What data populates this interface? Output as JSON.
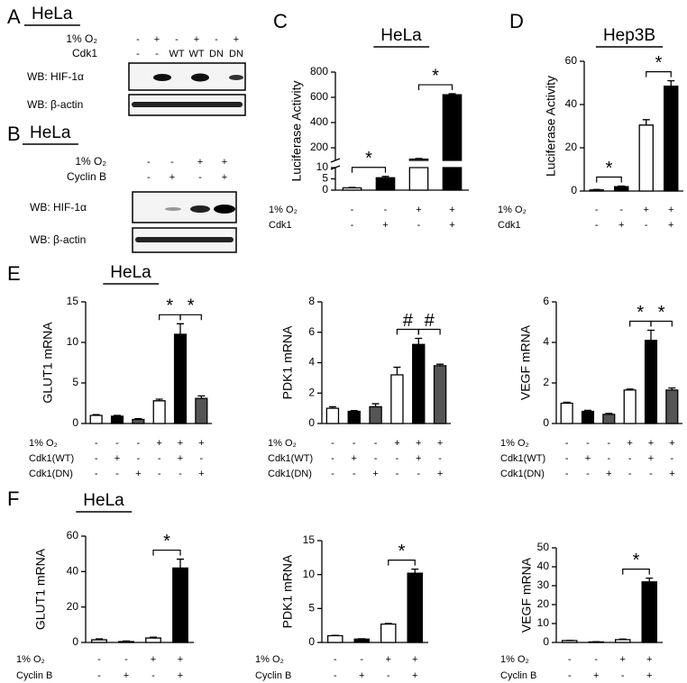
{
  "panel_labels": [
    "A",
    "B",
    "C",
    "D",
    "E",
    "F"
  ],
  "blots": [
    {
      "title": "HeLa",
      "conditions": [
        {
          "name": "1% O₂",
          "marks": [
            "-",
            "+",
            "-",
            "+",
            "-",
            "+"
          ]
        },
        {
          "name": "Cdk1",
          "marks": [
            "-",
            "-",
            "WT",
            "WT",
            "DN",
            "DN"
          ]
        }
      ],
      "rows": [
        "WB: HIF-1α",
        "WB: β-actin"
      ]
    },
    {
      "title": "HeLa",
      "conditions": [
        {
          "name": "1% O₂",
          "marks": [
            "-",
            "-",
            "+",
            "+"
          ]
        },
        {
          "name": "Cyclin B",
          "marks": [
            "-",
            "+",
            "-",
            "+"
          ]
        }
      ],
      "rows": [
        "WB: HIF-1α",
        "WB: β-actin"
      ]
    }
  ],
  "chart_data": [
    {
      "type": "broken_bar",
      "title": "HeLa",
      "y_label": "Luciferase  Activity",
      "ylim_lower": [
        0,
        10
      ],
      "ylim_upper": [
        100,
        800
      ],
      "yticks": [
        0,
        5,
        10,
        200,
        400,
        600,
        800
      ],
      "values": [
        1,
        5.5,
        110,
        620
      ],
      "errors": [
        0.2,
        0.6,
        5,
        8
      ],
      "colors": [
        "#ffffff",
        "#000000",
        "#ffffff",
        "#000000"
      ],
      "conditions": [
        {
          "name": "1% O₂",
          "marks": [
            "-",
            "-",
            "+",
            "+"
          ]
        },
        {
          "name": "Cdk1",
          "marks": [
            "-",
            "+",
            "-",
            "+"
          ]
        }
      ],
      "brackets": [
        {
          "label": "*",
          "from": 0,
          "to": 1
        },
        {
          "label": "*",
          "from": 2,
          "to": 3
        }
      ]
    },
    {
      "type": "bar",
      "title": "Hep3B",
      "y_label": "Luciferase  Activity",
      "ylim": [
        0,
        60
      ],
      "yticks": [
        0,
        20,
        40,
        60
      ],
      "values": [
        0.5,
        2,
        30.5,
        48.5
      ],
      "errors": [
        0.2,
        0.3,
        2.5,
        2.5
      ],
      "colors": [
        "#ffffff",
        "#000000",
        "#ffffff",
        "#000000"
      ],
      "conditions": [
        {
          "name": "1% O₂",
          "marks": [
            "-",
            "-",
            "+",
            "+"
          ]
        },
        {
          "name": "Cdk1",
          "marks": [
            "-",
            "+",
            "-",
            "+"
          ]
        }
      ],
      "brackets": [
        {
          "label": "*",
          "from": 0,
          "to": 1
        },
        {
          "label": "*",
          "from": 2,
          "to": 3
        }
      ]
    },
    {
      "type": "bar",
      "title": "HeLa",
      "y_label": "GLUT1 mRNA",
      "ylim": [
        0,
        15
      ],
      "yticks": [
        0,
        5,
        10,
        15
      ],
      "values": [
        1,
        0.9,
        0.5,
        2.8,
        11,
        3.1
      ],
      "errors": [
        0.1,
        0.1,
        0.1,
        0.2,
        1.3,
        0.3
      ],
      "colors": [
        "#ffffff",
        "#000000",
        "#555555",
        "#ffffff",
        "#000000",
        "#555555"
      ],
      "conditions": [
        {
          "name": "1% O₂",
          "marks": [
            "-",
            "-",
            "-",
            "+",
            "+",
            "+"
          ]
        },
        {
          "name": "Cdk1(WT)",
          "marks": [
            "-",
            "+",
            "-",
            "-",
            "+",
            "-"
          ]
        },
        {
          "name": "Cdk1(DN)",
          "marks": [
            "-",
            "-",
            "+",
            "-",
            "-",
            "+"
          ]
        }
      ],
      "brackets": [
        {
          "label": "*",
          "from": 3,
          "to": 4
        },
        {
          "label": "*",
          "from": 4,
          "to": 5
        }
      ]
    },
    {
      "type": "bar",
      "y_label": "PDK1 mRNA",
      "ylim": [
        0,
        8
      ],
      "yticks": [
        0,
        2,
        4,
        6,
        8
      ],
      "values": [
        1,
        0.8,
        1.1,
        3.2,
        5.2,
        3.8
      ],
      "errors": [
        0.1,
        0.05,
        0.2,
        0.5,
        0.4,
        0.1
      ],
      "colors": [
        "#ffffff",
        "#000000",
        "#555555",
        "#ffffff",
        "#000000",
        "#555555"
      ],
      "conditions": [
        {
          "name": "1% O₂",
          "marks": [
            "-",
            "-",
            "-",
            "+",
            "+",
            "+"
          ]
        },
        {
          "name": "Cdk1(WT)",
          "marks": [
            "-",
            "+",
            "-",
            "-",
            "+",
            "-"
          ]
        },
        {
          "name": "Cdk1(DN)",
          "marks": [
            "-",
            "-",
            "+",
            "-",
            "-",
            "+"
          ]
        }
      ],
      "brackets": [
        {
          "label": "#",
          "from": 3,
          "to": 4
        },
        {
          "label": "#",
          "from": 4,
          "to": 5
        }
      ]
    },
    {
      "type": "bar",
      "y_label": "VEGF mRNA",
      "ylim": [
        0,
        6
      ],
      "yticks": [
        0,
        2,
        4,
        6
      ],
      "values": [
        1,
        0.6,
        0.45,
        1.65,
        4.1,
        1.65
      ],
      "errors": [
        0.05,
        0.05,
        0.05,
        0.05,
        0.5,
        0.1
      ],
      "colors": [
        "#ffffff",
        "#000000",
        "#555555",
        "#ffffff",
        "#000000",
        "#555555"
      ],
      "conditions": [
        {
          "name": "1% O₂",
          "marks": [
            "-",
            "-",
            "-",
            "+",
            "+",
            "+"
          ]
        },
        {
          "name": "Cdk1(WT)",
          "marks": [
            "-",
            "+",
            "-",
            "-",
            "+",
            "-"
          ]
        },
        {
          "name": "Cdk1(DN)",
          "marks": [
            "-",
            "-",
            "+",
            "-",
            "-",
            "+"
          ]
        }
      ],
      "brackets": [
        {
          "label": "*",
          "from": 3,
          "to": 4
        },
        {
          "label": "*",
          "from": 4,
          "to": 5
        }
      ]
    },
    {
      "type": "bar",
      "title": "HeLa",
      "y_label": "GLUT1 mRNA",
      "ylim": [
        0,
        60
      ],
      "yticks": [
        0,
        20,
        40,
        60
      ],
      "values": [
        1.5,
        0.5,
        2.5,
        42
      ],
      "errors": [
        0.5,
        0.3,
        0.5,
        5
      ],
      "colors": [
        "#ffffff",
        "#000000",
        "#ffffff",
        "#000000"
      ],
      "conditions": [
        {
          "name": "1% O₂",
          "marks": [
            "-",
            "-",
            "+",
            "+"
          ]
        },
        {
          "name": "Cyclin B",
          "marks": [
            "-",
            "+",
            "-",
            "+"
          ]
        }
      ],
      "brackets": [
        {
          "label": "*",
          "from": 2,
          "to": 3
        }
      ]
    },
    {
      "type": "bar",
      "y_label": "PDK1 mRNA",
      "ylim": [
        0,
        15
      ],
      "yticks": [
        0,
        5,
        10,
        15
      ],
      "values": [
        1,
        0.5,
        2.7,
        10.2
      ],
      "errors": [
        0.05,
        0.05,
        0.1,
        0.6
      ],
      "colors": [
        "#ffffff",
        "#000000",
        "#ffffff",
        "#000000"
      ],
      "conditions": [
        {
          "name": "1% O₂",
          "marks": [
            "-",
            "-",
            "+",
            "+"
          ]
        },
        {
          "name": "Cyclin B",
          "marks": [
            "-",
            "+",
            "-",
            "+"
          ]
        }
      ],
      "brackets": [
        {
          "label": "*",
          "from": 2,
          "to": 3
        }
      ]
    },
    {
      "type": "bar",
      "y_label": "VEGF mRNA",
      "ylim": [
        0,
        50
      ],
      "yticks": [
        0,
        10,
        20,
        30,
        40,
        50
      ],
      "values": [
        1,
        0.3,
        1.5,
        32
      ],
      "errors": [
        0.1,
        0.1,
        0.3,
        2
      ],
      "colors": [
        "#ffffff",
        "#000000",
        "#ffffff",
        "#000000"
      ],
      "conditions": [
        {
          "name": "1% O₂",
          "marks": [
            "-",
            "-",
            "+",
            "+"
          ]
        },
        {
          "name": "Cyclin B",
          "marks": [
            "-",
            "+",
            "-",
            "+"
          ]
        }
      ],
      "brackets": [
        {
          "label": "*",
          "from": 2,
          "to": 3
        }
      ]
    }
  ]
}
